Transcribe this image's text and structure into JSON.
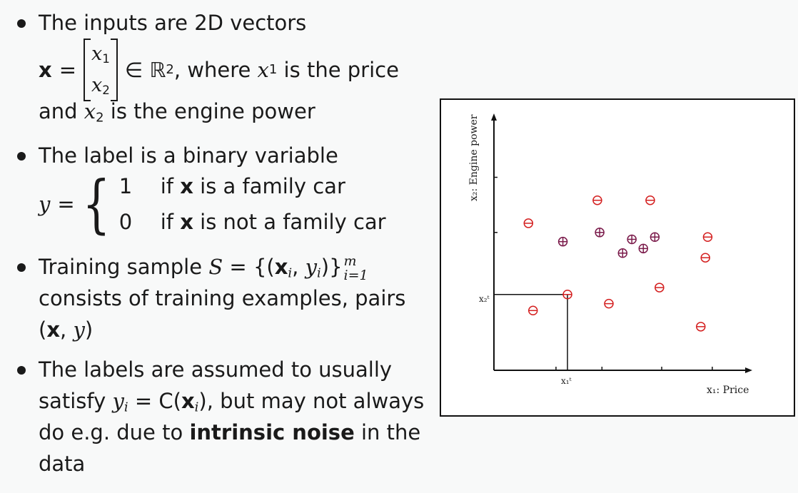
{
  "bullets": {
    "b1": {
      "line1": "The inputs are 2D vectors",
      "x_bold": "x",
      "eq": "=",
      "x1": "x",
      "x1_sub": "1",
      "x2": "x",
      "x2_sub": "2",
      "in_R": "∈ ℝ",
      "R_sup": "2",
      "where": ", where ",
      "wx1": "x",
      "wx1_sub": "1",
      "is_price": " is the price",
      "and": "and ",
      "ax2": "x",
      "ax2_sub": "2",
      "engine": " is the engine power"
    },
    "b2": {
      "line1": "The label is a binary variable",
      "y": "y",
      "eq": "=",
      "case1_val": "1",
      "case1_pre": "if ",
      "case1_x": "x",
      "case1_post": " is a family car",
      "case2_val": "0",
      "case2_pre": "if ",
      "case2_x": "x",
      "case2_post": " is not a family car"
    },
    "b3": {
      "pre": "Training sample ",
      "S": "S",
      "eq": " = ",
      "open": "{(",
      "xi": "x",
      "i_sub": "i",
      "comma": ", ",
      "yi": "y",
      "yi_sub": "i",
      "close": ")}",
      "sup_m": "m",
      "sub_i1": "i=1",
      "line2": "consists of training examples, pairs",
      "pair_open": "(",
      "pair_x": "x",
      "pair_comma": ", ",
      "pair_y": "y",
      "pair_close": ")"
    },
    "b4": {
      "line1": "The labels are assumed to usually",
      "sat": "satisfy ",
      "yi": "y",
      "yi_sub": "i",
      "eqC": " = C(",
      "xi": "x",
      "xi_sub": "i",
      "close": ")",
      "rest": ", but may not always",
      "line3_pre": "do e.g. due to ",
      "noise": "intrinsic noise",
      "line3_post": " in the",
      "line4": "data"
    }
  },
  "chart_data": {
    "type": "scatter",
    "xlabel": "x₁: Price",
    "ylabel": "x₂: Engine power",
    "marked_point_x_label": "x₁ᵗ",
    "marked_point_y_label": "x₂ᵗ",
    "series": [
      {
        "name": "",
        "marker": "plus-circle",
        "color": "#7a1a4a",
        "points": [
          [
            3.0,
            5.6
          ],
          [
            4.6,
            6.0
          ],
          [
            5.6,
            5.1
          ],
          [
            6.0,
            5.7
          ],
          [
            7.0,
            5.8
          ],
          [
            6.5,
            5.3
          ]
        ]
      },
      {
        "name": "",
        "marker": "minus-circle",
        "color": "#d42020",
        "points": [
          [
            1.5,
            6.4
          ],
          [
            4.5,
            7.4
          ],
          [
            6.8,
            7.4
          ],
          [
            9.3,
            5.8
          ],
          [
            9.2,
            4.9
          ],
          [
            7.2,
            3.6
          ],
          [
            5.0,
            2.9
          ],
          [
            3.2,
            3.3
          ],
          [
            1.7,
            2.6
          ],
          [
            9.0,
            1.9
          ]
        ]
      }
    ],
    "xlim": [
      0,
      10
    ],
    "ylim": [
      0,
      10
    ],
    "x_ticks": [
      2.7,
      4.7,
      7.3,
      9.5
    ],
    "y_ticks": [
      3.3,
      6.0,
      8.4
    ],
    "marked_point": [
      3.2,
      3.3
    ]
  }
}
